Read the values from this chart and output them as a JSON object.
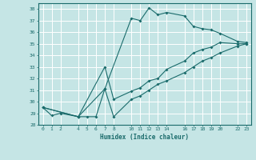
{
  "xlabel": "Humidex (Indice chaleur)",
  "bg_color": "#c5e5e5",
  "line_color": "#1a6b6b",
  "grid_color": "#ffffff",
  "ylim": [
    28,
    38.5
  ],
  "xlim": [
    -0.5,
    23.5
  ],
  "yticks": [
    28,
    29,
    30,
    31,
    32,
    33,
    34,
    35,
    36,
    37,
    38
  ],
  "xticks": [
    0,
    1,
    2,
    4,
    5,
    6,
    7,
    8,
    10,
    11,
    12,
    13,
    14,
    16,
    17,
    18,
    19,
    20,
    22,
    23
  ],
  "series": [
    {
      "x": [
        0,
        1,
        2,
        4,
        5,
        6,
        7,
        10,
        11,
        12,
        13,
        14,
        16,
        17,
        18,
        19,
        20,
        22,
        23
      ],
      "y": [
        29.5,
        28.8,
        29.0,
        28.7,
        28.7,
        28.7,
        31.1,
        37.2,
        37.0,
        38.1,
        37.5,
        37.7,
        37.4,
        36.5,
        36.3,
        36.2,
        35.9,
        35.2,
        35.1
      ]
    },
    {
      "x": [
        0,
        4,
        7,
        8,
        10,
        11,
        12,
        13,
        14,
        16,
        17,
        18,
        19,
        20,
        22,
        23
      ],
      "y": [
        29.5,
        28.7,
        33.0,
        30.2,
        30.9,
        31.2,
        31.8,
        32.0,
        32.8,
        33.5,
        34.2,
        34.5,
        34.7,
        35.1,
        35.0,
        35.0
      ]
    },
    {
      "x": [
        0,
        4,
        7,
        8,
        10,
        11,
        12,
        13,
        14,
        16,
        17,
        18,
        19,
        20,
        22,
        23
      ],
      "y": [
        29.5,
        28.7,
        31.1,
        28.7,
        30.2,
        30.5,
        31.0,
        31.5,
        31.8,
        32.5,
        33.0,
        33.5,
        33.8,
        34.2,
        34.8,
        35.0
      ]
    }
  ]
}
